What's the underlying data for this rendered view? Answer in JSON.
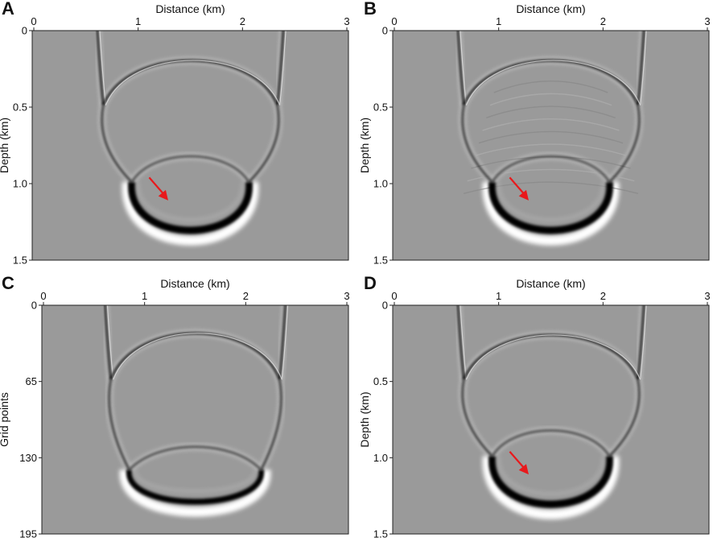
{
  "panels": [
    {
      "id": "A",
      "letter": "A",
      "x_title": "Distance (km)",
      "y_title": "Depth (km)",
      "x_ticks": [
        "0",
        "1",
        "2",
        "3"
      ],
      "y_ticks": [
        "0",
        "0.5",
        "1.0",
        "1.5"
      ],
      "has_arrow": true,
      "arrow_color": "#e8191c",
      "ring_artifacts": false,
      "variant": "standard"
    },
    {
      "id": "B",
      "letter": "B",
      "x_title": "Distance (km)",
      "y_title": "Depth (km)",
      "x_ticks": [
        "0",
        "1",
        "2",
        "3"
      ],
      "y_ticks": [
        "0",
        "0.5",
        "1.0",
        "1.5"
      ],
      "has_arrow": true,
      "arrow_color": "#e8191c",
      "ring_artifacts": true,
      "variant": "standard"
    },
    {
      "id": "C",
      "letter": "C",
      "x_title": "Distance (km)",
      "y_title": "Grid points",
      "x_ticks": [
        "0",
        "1",
        "2",
        "3"
      ],
      "y_ticks": [
        "0",
        "65",
        "130",
        "195"
      ],
      "has_arrow": false,
      "arrow_color": "#e8191c",
      "ring_artifacts": false,
      "variant": "compressed"
    },
    {
      "id": "D",
      "letter": "D",
      "x_title": "Distance (km)",
      "y_title": "Depth (km)",
      "x_ticks": [
        "0",
        "1",
        "2",
        "3"
      ],
      "y_ticks": [
        "0",
        "0.5",
        "1.0",
        "1.5"
      ],
      "has_arrow": true,
      "arrow_color": "#e8191c",
      "ring_artifacts": false,
      "variant": "standard"
    }
  ],
  "colors": {
    "background": "#9a9a9a",
    "wave_dark": "#050505",
    "wave_light": "#ffffff"
  }
}
